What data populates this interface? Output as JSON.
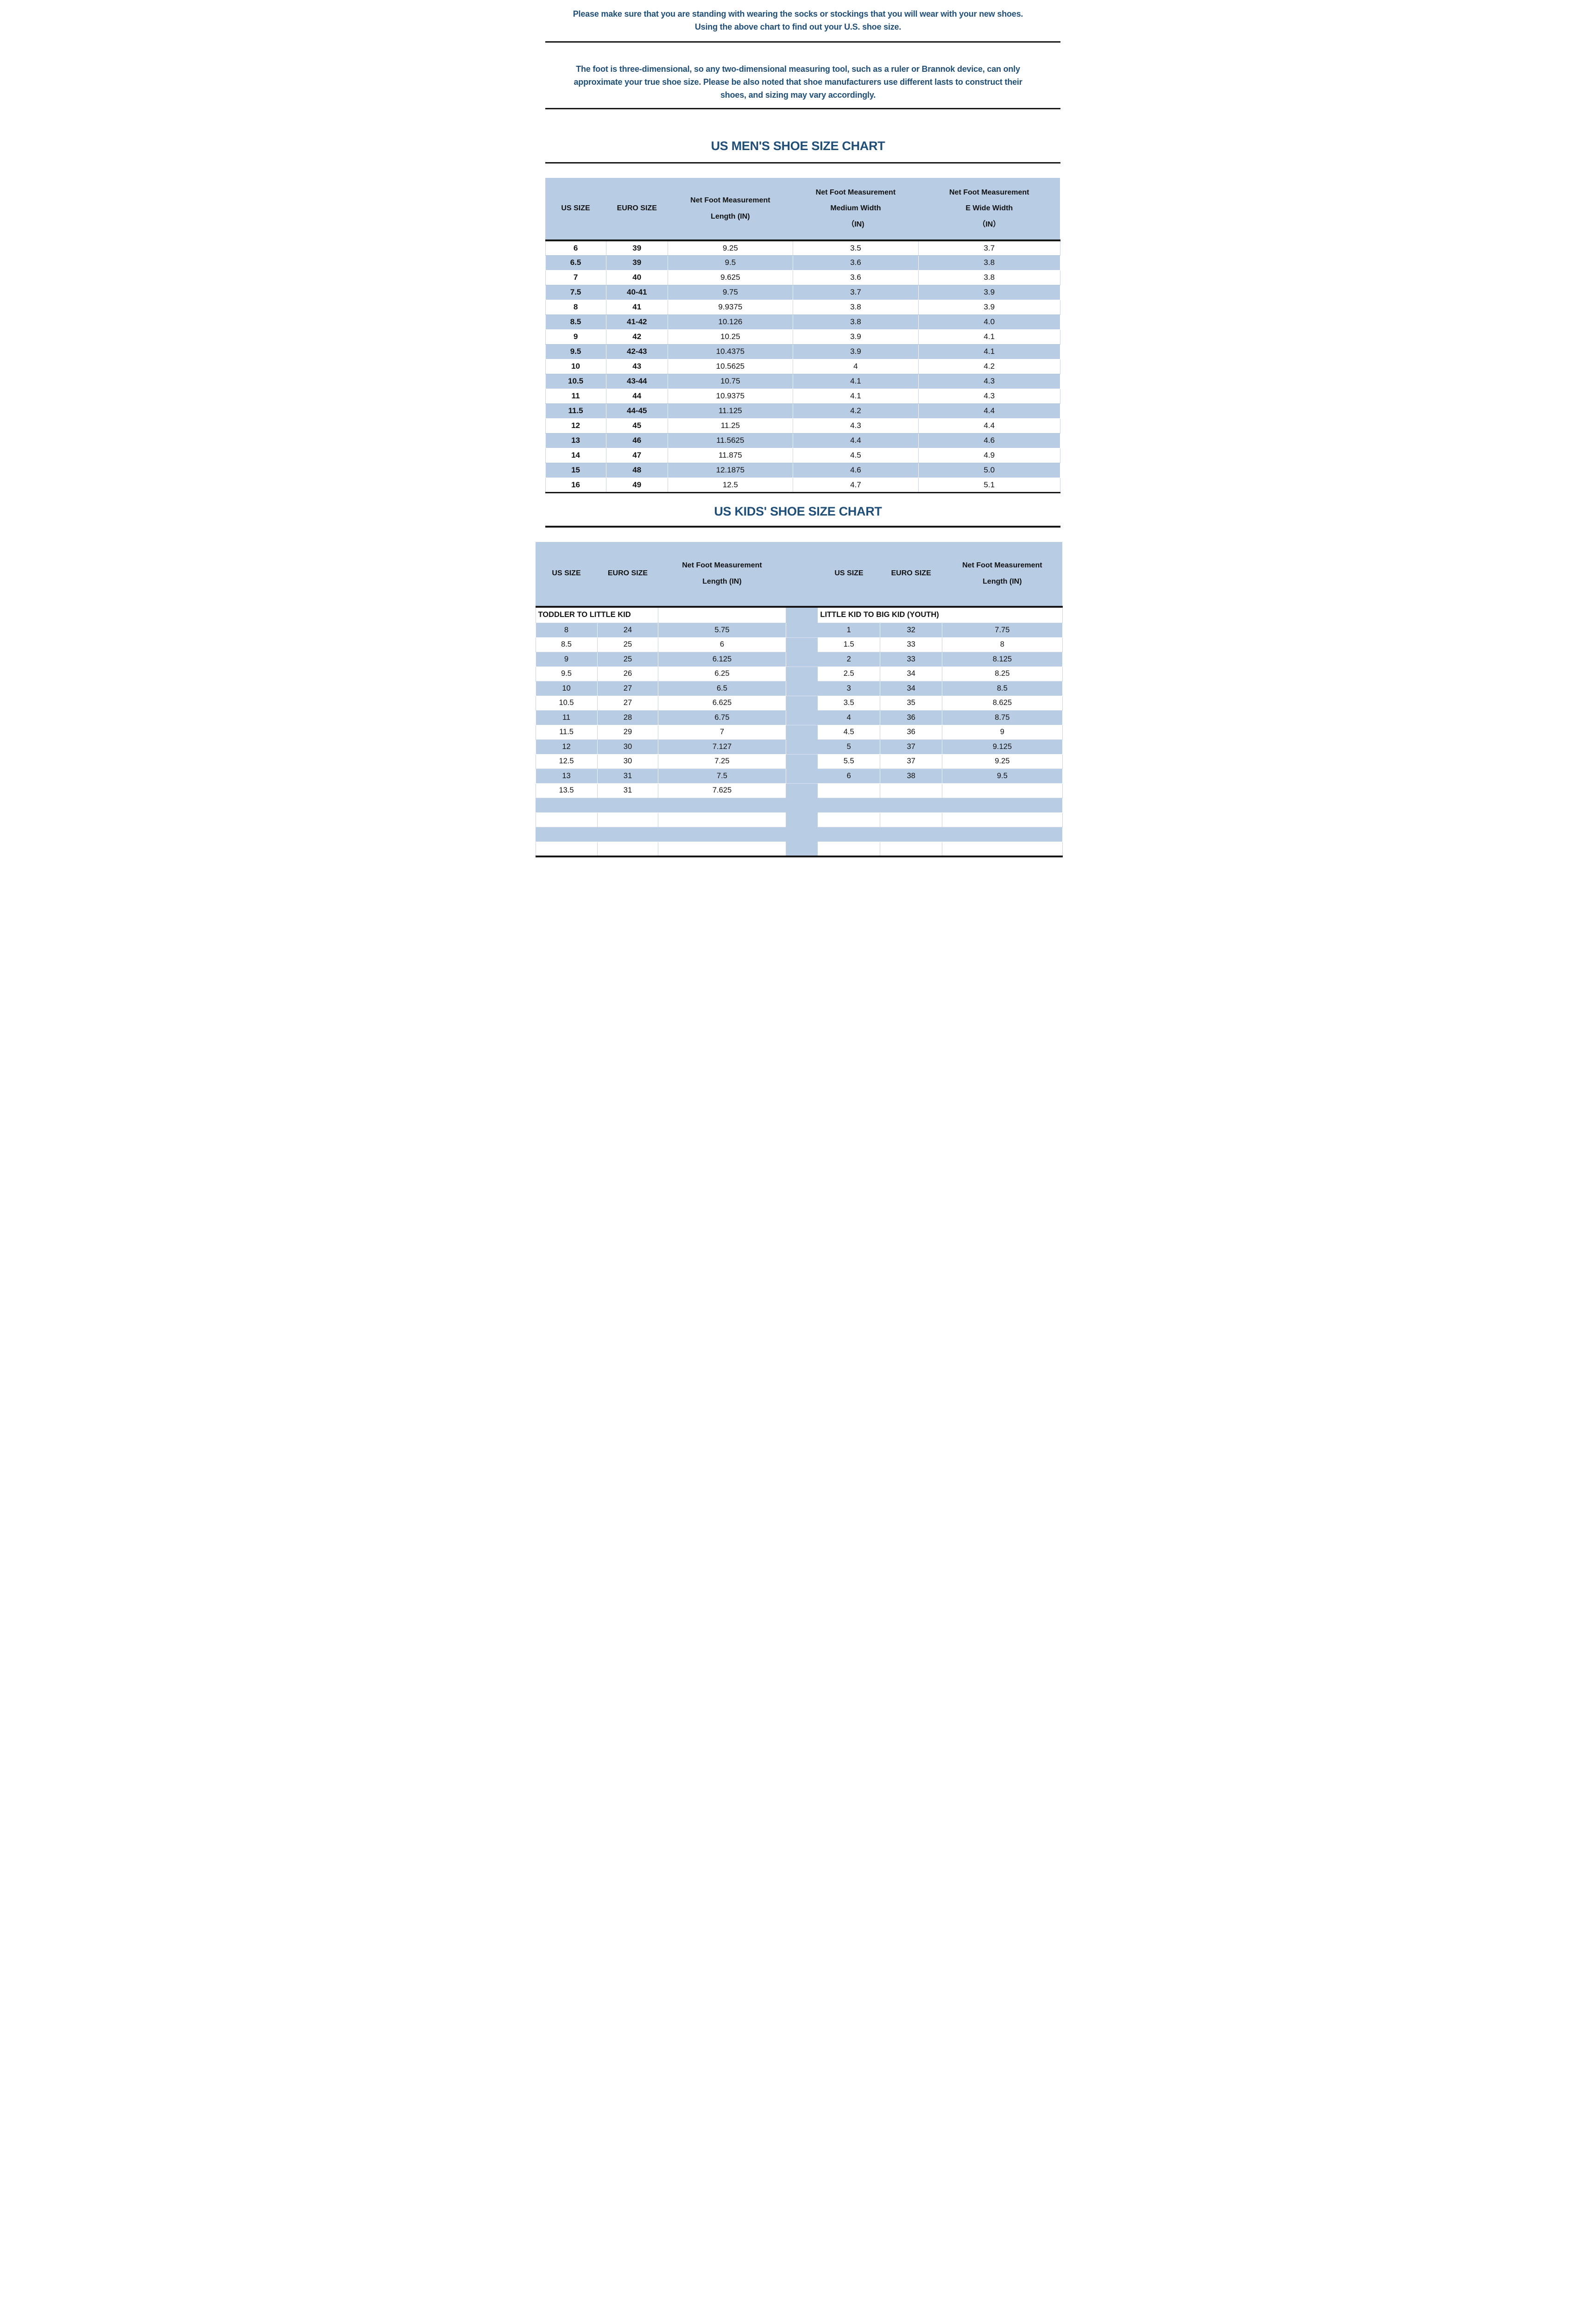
{
  "colors": {
    "accent_blue": "#b8cce4",
    "heading_blue": "#1f4e79",
    "rule_black": "#161616"
  },
  "notes": {
    "note1": "Please make sure that you are standing with wearing the socks or stockings that you will wear with your new shoes.\nUsing the above chart to find out your U.S. shoe size.",
    "note2": "The foot is three-dimensional, so any two-dimensional measuring tool, such as a ruler or Brannok device, can only\napproximate your true shoe size. Please be also noted that shoe manufacturers use different lasts to construct their\nshoes, and sizing may vary accordingly."
  },
  "mens_chart": {
    "title": "US MEN'S SHOE SIZE CHART",
    "headers": [
      "US SIZE",
      "EURO SIZE",
      "Net Foot Measurement\nLength (IN)",
      "Net Foot Measurement\nMedium Width\n（IN)",
      "Net Foot Measurement\nE Wide Width\n（IN）"
    ],
    "rows": [
      [
        "6",
        "39",
        "9.25",
        "3.5",
        "3.7"
      ],
      [
        "6.5",
        "39",
        "9.5",
        "3.6",
        "3.8"
      ],
      [
        "7",
        "40",
        "9.625",
        "3.6",
        "3.8"
      ],
      [
        "7.5",
        "40-41",
        "9.75",
        "3.7",
        "3.9"
      ],
      [
        "8",
        "41",
        "9.9375",
        "3.8",
        "3.9"
      ],
      [
        "8.5",
        "41-42",
        "10.126",
        "3.8",
        "4.0"
      ],
      [
        "9",
        "42",
        "10.25",
        "3.9",
        "4.1"
      ],
      [
        "9.5",
        "42-43",
        "10.4375",
        "3.9",
        "4.1"
      ],
      [
        "10",
        "43",
        "10.5625",
        "4",
        "4.2"
      ],
      [
        "10.5",
        "43-44",
        "10.75",
        "4.1",
        "4.3"
      ],
      [
        "11",
        "44",
        "10.9375",
        "4.1",
        "4.3"
      ],
      [
        "11.5",
        "44-45",
        "11.125",
        "4.2",
        "4.4"
      ],
      [
        "12",
        "45",
        "11.25",
        "4.3",
        "4.4"
      ],
      [
        "13",
        "46",
        "11.5625",
        "4.4",
        "4.6"
      ],
      [
        "14",
        "47",
        "11.875",
        "4.5",
        "4.9"
      ],
      [
        "15",
        "48",
        "12.1875",
        "4.6",
        "5.0"
      ],
      [
        "16",
        "49",
        "12.5",
        "4.7",
        "5.1"
      ]
    ]
  },
  "kids_chart": {
    "title": "US KIDS' SHOE SIZE CHART",
    "headers": [
      "US SIZE",
      "EURO SIZE",
      "Net Foot Measurement\nLength (IN)",
      "",
      "US SIZE",
      "EURO SIZE",
      "Net Foot Measurement\nLength (IN)"
    ],
    "group_left": "TODDLER TO LITTLE KID",
    "group_right": "LITTLE KID TO BIG KID (YOUTH)",
    "rows_left": [
      [
        "8",
        "24",
        "5.75"
      ],
      [
        "8.5",
        "25",
        "6"
      ],
      [
        "9",
        "25",
        "6.125"
      ],
      [
        "9.5",
        "26",
        "6.25"
      ],
      [
        "10",
        "27",
        "6.5"
      ],
      [
        "10.5",
        "27",
        "6.625"
      ],
      [
        "11",
        "28",
        "6.75"
      ],
      [
        "11.5",
        "29",
        "7"
      ],
      [
        "12",
        "30",
        "7.127"
      ],
      [
        "12.5",
        "30",
        "7.25"
      ],
      [
        "13",
        "31",
        "7.5"
      ],
      [
        "13.5",
        "31",
        "7.625"
      ]
    ],
    "rows_right": [
      [
        "1",
        "32",
        "7.75"
      ],
      [
        "1.5",
        "33",
        "8"
      ],
      [
        "2",
        "33",
        "8.125"
      ],
      [
        "2.5",
        "34",
        "8.25"
      ],
      [
        "3",
        "34",
        "8.5"
      ],
      [
        "3.5",
        "35",
        "8.625"
      ],
      [
        "4",
        "36",
        "8.75"
      ],
      [
        "4.5",
        "36",
        "9"
      ],
      [
        "5",
        "37",
        "9.125"
      ],
      [
        "5.5",
        "37",
        "9.25"
      ],
      [
        "6",
        "38",
        "9.5"
      ],
      [
        "",
        "",
        ""
      ]
    ],
    "trailing_empty_rows": 4
  }
}
